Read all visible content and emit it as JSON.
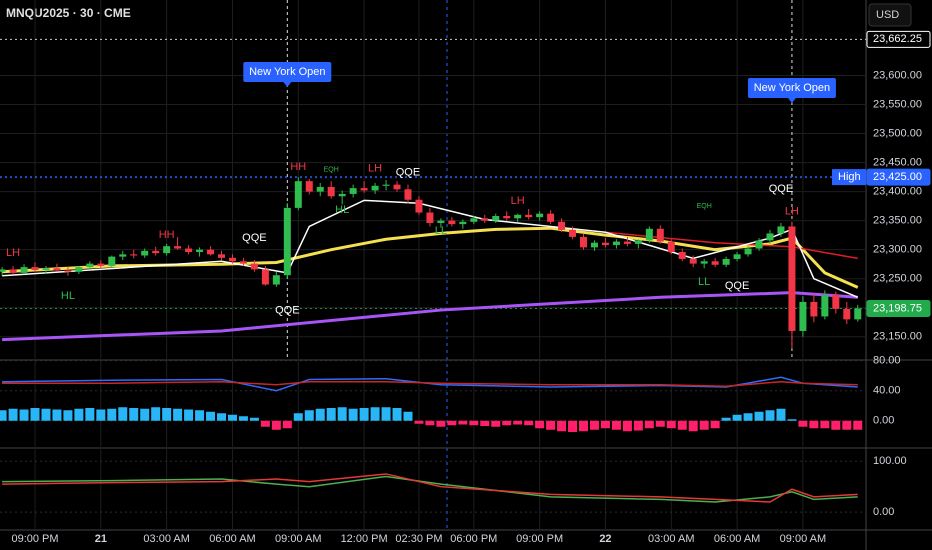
{
  "chart_data": {
    "type": "candlestick",
    "title": "MNQU2025 · 30 · CME",
    "currency": "USD",
    "x": [
      null,
      null,
      null,
      "09:00 PM",
      null,
      null,
      null,
      null,
      null,
      "21",
      null,
      null,
      null,
      null,
      null,
      "03:00 AM",
      null,
      null,
      null,
      null,
      null,
      "06:00 AM",
      null,
      null,
      null,
      null,
      null,
      "09:00 AM",
      null,
      null,
      null,
      null,
      null,
      "12:00 PM",
      null,
      null,
      null,
      null,
      "02:30 PM",
      null,
      null,
      null,
      null,
      "06:00 PM",
      null,
      null,
      null,
      null,
      null,
      "09:00 PM",
      null,
      null,
      null,
      null,
      null,
      "22",
      null,
      null,
      null,
      null,
      null,
      "03:00 AM",
      null,
      null,
      null,
      null,
      null,
      "06:00 AM",
      null,
      null,
      null,
      null,
      null,
      "09:00 AM",
      null,
      null,
      null,
      null,
      null
    ],
    "open": [
      23262,
      23266,
      23260,
      23270,
      23265,
      23268,
      23264,
      23262,
      23270,
      23276,
      23272,
      23288,
      23292,
      23290,
      23298,
      23294,
      23306,
      23302,
      23296,
      23300,
      23292,
      23286,
      23280,
      23276,
      23266,
      23240,
      23256,
      23372,
      23418,
      23400,
      23408,
      23392,
      23396,
      23406,
      23402,
      23410,
      23412,
      23404,
      23386,
      23364,
      23346,
      23350,
      23344,
      23348,
      23354,
      23350,
      23358,
      23354,
      23360,
      23356,
      23362,
      23348,
      23334,
      23322,
      23304,
      23312,
      23308,
      23314,
      23310,
      23316,
      23336,
      23314,
      23296,
      23284,
      23276,
      23280,
      23274,
      23284,
      23292,
      23302,
      23316,
      23328,
      23340,
      23160,
      23210,
      23185,
      23222,
      23198,
      23180
    ],
    "high": [
      23270,
      23272,
      23275,
      23278,
      23272,
      23276,
      23270,
      23272,
      23280,
      23282,
      23290,
      23298,
      23300,
      23302,
      23305,
      23310,
      23322,
      23308,
      23304,
      23306,
      23298,
      23292,
      23286,
      23282,
      23272,
      23262,
      23380,
      23425,
      23422,
      23415,
      23418,
      23402,
      23412,
      23418,
      23415,
      23420,
      23418,
      23412,
      23392,
      23372,
      23354,
      23356,
      23352,
      23358,
      23360,
      23362,
      23366,
      23362,
      23370,
      23366,
      23368,
      23354,
      23340,
      23328,
      23316,
      23320,
      23318,
      23322,
      23318,
      23340,
      23342,
      23318,
      23302,
      23290,
      23284,
      23286,
      23288,
      23296,
      23306,
      23320,
      23334,
      23346,
      23348,
      23220,
      23225,
      23230,
      23228,
      23210,
      23205
    ],
    "low": [
      23255,
      23258,
      23258,
      23262,
      23258,
      23262,
      23255,
      23258,
      23266,
      23268,
      23270,
      23282,
      23285,
      23286,
      23290,
      23290,
      23300,
      23292,
      23288,
      23290,
      23282,
      23276,
      23272,
      23262,
      23238,
      23236,
      23250,
      23368,
      23395,
      23392,
      23388,
      23378,
      23390,
      23398,
      23396,
      23402,
      23400,
      23380,
      23360,
      23340,
      23338,
      23340,
      23336,
      23344,
      23346,
      23346,
      23350,
      23348,
      23352,
      23350,
      23344,
      23330,
      23318,
      23300,
      23298,
      23304,
      23302,
      23306,
      23302,
      23312,
      23310,
      23292,
      23280,
      23270,
      23268,
      23270,
      23270,
      23280,
      23288,
      23298,
      23310,
      23322,
      23130,
      23150,
      23175,
      23180,
      23190,
      23172,
      23176
    ],
    "close": [
      23266,
      23260,
      23270,
      23265,
      23268,
      23264,
      23262,
      23270,
      23276,
      23272,
      23288,
      23292,
      23290,
      23298,
      23294,
      23306,
      23302,
      23296,
      23300,
      23292,
      23286,
      23280,
      23276,
      23266,
      23240,
      23256,
      23372,
      23418,
      23400,
      23408,
      23392,
      23396,
      23406,
      23402,
      23410,
      23412,
      23404,
      23386,
      23364,
      23346,
      23350,
      23344,
      23348,
      23354,
      23350,
      23358,
      23354,
      23360,
      23356,
      23362,
      23348,
      23334,
      23322,
      23304,
      23312,
      23308,
      23314,
      23310,
      23316,
      23336,
      23314,
      23296,
      23284,
      23276,
      23280,
      23274,
      23284,
      23292,
      23302,
      23316,
      23328,
      23340,
      23160,
      23210,
      23185,
      23222,
      23198,
      23180,
      23198.75
    ],
    "up_color": "#2ebd4e",
    "down_color": "#f23645",
    "ylim": [
      23110,
      23730
    ],
    "yticks": [
      {
        "value": 23150,
        "label": "23,150.00"
      },
      {
        "value": 23200,
        "label": "23,200.00"
      },
      {
        "value": 23250,
        "label": "23,250.00"
      },
      {
        "value": 23300,
        "label": "23,300.00"
      },
      {
        "value": 23350,
        "label": "23,350.00"
      },
      {
        "value": 23400,
        "label": "23,400.00"
      },
      {
        "value": 23450,
        "label": "23,450.00"
      },
      {
        "value": 23500,
        "label": "23,500.00"
      },
      {
        "value": 23550,
        "label": "23,550.00"
      },
      {
        "value": 23600,
        "label": "23,600.00"
      }
    ],
    "grid": true,
    "lines": [
      {
        "color": "#a855f7",
        "x": [
          0,
          20,
          40,
          60,
          72,
          78
        ],
        "values": [
          23145,
          23160,
          23196,
          23218,
          23226,
          23218
        ]
      },
      {
        "color": "#f5e050",
        "x": [
          0,
          10,
          20,
          25,
          30,
          35,
          40,
          45,
          50,
          55,
          60,
          65,
          70,
          72,
          75,
          78
        ],
        "values": [
          23262,
          23272,
          23275,
          23278,
          23300,
          23318,
          23328,
          23335,
          23337,
          23325,
          23315,
          23300,
          23310,
          23320,
          23260,
          23235
        ]
      },
      {
        "color": "#e11d2a",
        "x": [
          55,
          65,
          72,
          78
        ],
        "values": [
          23330,
          23312,
          23305,
          23285
        ]
      },
      {
        "color": "#ffffff",
        "x": [
          0,
          20,
          26,
          28,
          33,
          38,
          44,
          55,
          63,
          70,
          72,
          74,
          78
        ],
        "values": [
          23255,
          23280,
          23260,
          23340,
          23385,
          23380,
          23352,
          23330,
          23285,
          23320,
          23335,
          23250,
          23218
        ]
      }
    ],
    "price_marks": [
      {
        "value": 23662.25,
        "label": "23,662.25",
        "color": "#ffffff"
      },
      {
        "text": "High",
        "value": 23425,
        "label": "23,425.00",
        "color": "#2962ff"
      },
      {
        "value": 23198.75,
        "label": "23,198.75",
        "color": "#22ab4a"
      }
    ],
    "events": [
      {
        "text": "New York Open",
        "x": 26
      },
      {
        "text": "New York Open",
        "x": 72
      }
    ],
    "annotations": [
      {
        "text": "LH",
        "x": 1,
        "y": 23294,
        "color": "#f23645"
      },
      {
        "text": "HL",
        "x": 6,
        "y": 23220,
        "color": "#2ebd4e"
      },
      {
        "text": "HH",
        "x": 15,
        "y": 23325,
        "color": "#f23645"
      },
      {
        "text": "QQE",
        "x": 23,
        "y": 23320,
        "color": "#ffffff"
      },
      {
        "text": "QQE",
        "x": 26,
        "y": 23195,
        "color": "#ffffff"
      },
      {
        "text": "HH",
        "x": 27,
        "y": 23442,
        "color": "#f23645"
      },
      {
        "text": "EQH",
        "x": 30,
        "y": 23438,
        "color": "#2ebd4e"
      },
      {
        "text": "HL",
        "x": 31,
        "y": 23368,
        "color": "#2ebd4e"
      },
      {
        "text": "LH",
        "x": 34,
        "y": 23440,
        "color": "#f23645"
      },
      {
        "text": "QQE",
        "x": 37,
        "y": 23433,
        "color": "#ffffff"
      },
      {
        "text": "LL",
        "x": 40,
        "y": 23332,
        "color": "#2ebd4e"
      },
      {
        "text": "LH",
        "x": 47,
        "y": 23384,
        "color": "#f23645"
      },
      {
        "text": "EQH",
        "x": 64,
        "y": 23375,
        "color": "#2ebd4e"
      },
      {
        "text": "LL",
        "x": 64,
        "y": 23244,
        "color": "#2ebd4e"
      },
      {
        "text": "QQE",
        "x": 67,
        "y": 23237,
        "color": "#ffffff"
      },
      {
        "text": "QQE",
        "x": 71,
        "y": 23404,
        "color": "#ffffff"
      },
      {
        "text": "LH",
        "x": 72,
        "y": 23366,
        "color": "#f23645"
      }
    ],
    "panes": [
      {
        "ylim": [
          -35,
          81
        ],
        "yticks": [
          {
            "value": 80,
            "label": "80.00"
          },
          {
            "value": 40,
            "label": "40.00"
          },
          {
            "value": 0,
            "label": "0.00"
          }
        ],
        "histogram": {
          "up_color": "#29b6f6",
          "down_color": "#ff1f6b",
          "values": [
            14,
            16,
            15,
            17,
            16,
            15,
            14,
            16,
            17,
            15,
            16,
            18,
            17,
            16,
            18,
            17,
            16,
            15,
            14,
            12,
            10,
            8,
            6,
            4,
            -8,
            -12,
            -10,
            10,
            14,
            16,
            17,
            18,
            16,
            17,
            18,
            18,
            17,
            12,
            -4,
            -6,
            -8,
            -6,
            -5,
            -6,
            -7,
            -8,
            -6,
            -5,
            -6,
            -10,
            -12,
            -14,
            -15,
            -14,
            -12,
            -10,
            -12,
            -14,
            -13,
            -10,
            -8,
            -10,
            -12,
            -14,
            -12,
            -10,
            4,
            8,
            10,
            12,
            14,
            16,
            2,
            -8,
            -10,
            -10,
            -12,
            -12,
            -12
          ]
        },
        "lines": [
          {
            "color": "#2f6bff",
            "x": [
              0,
              10,
              20,
              25,
              28,
              35,
              40,
              50,
              60,
              66,
              71,
              73,
              78
            ],
            "values": [
              52,
              54,
              55,
              40,
              55,
              56,
              48,
              45,
              47,
              45,
              58,
              50,
              45
            ]
          },
          {
            "color": "#c62828",
            "x": [
              0,
              10,
              20,
              25,
              28,
              35,
              40,
              50,
              60,
              66,
              71,
              73,
              78
            ],
            "values": [
              50,
              50,
              52,
              48,
              52,
              52,
              50,
              48,
              48,
              46,
              52,
              50,
              48
            ]
          }
        ]
      },
      {
        "ylim": [
          -35,
          122
        ],
        "yticks": [
          {
            "value": 100,
            "label": "100.00"
          },
          {
            "value": 0,
            "label": "0.00"
          }
        ],
        "lines": [
          {
            "color": "#4caf50",
            "x": [
              0,
              10,
              20,
              25,
              28,
              35,
              40,
              50,
              60,
              65,
              70,
              72,
              74,
              78
            ],
            "values": [
              60,
              62,
              65,
              55,
              50,
              70,
              55,
              30,
              25,
              20,
              30,
              40,
              25,
              30
            ]
          },
          {
            "color": "#e53935",
            "x": [
              0,
              10,
              20,
              25,
              28,
              35,
              40,
              50,
              60,
              65,
              70,
              72,
              74,
              78
            ],
            "values": [
              55,
              58,
              60,
              65,
              60,
              75,
              50,
              35,
              30,
              25,
              20,
              45,
              30,
              35
            ]
          }
        ]
      }
    ]
  }
}
